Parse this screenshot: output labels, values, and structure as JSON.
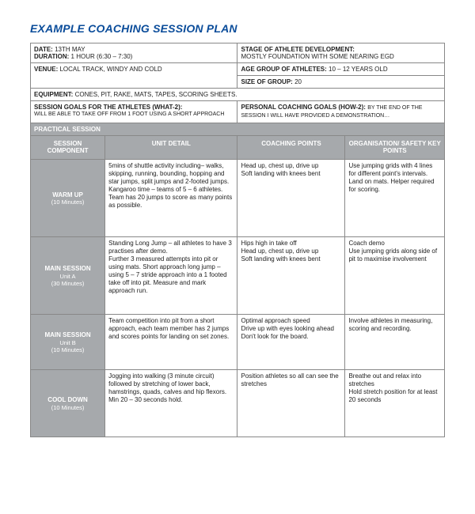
{
  "title": "EXAMPLE COACHING SESSION PLAN",
  "info": {
    "date_label": "DATE:",
    "date": "13TH MAY",
    "duration_label": "DURATION:",
    "duration": "1 HOUR (6:30 – 7:30)",
    "stage_label": "STAGE OF ATHLETE DEVELOPMENT:",
    "stage": "MOSTLY FOUNDATION WITH SOME NEARING EGD",
    "venue_label": "VENUE:",
    "venue": "LOCAL TRACK, WINDY AND COLD",
    "age_label": "AGE GROUP OF ATHLETES:",
    "age": "10 – 12 YEARS OLD",
    "size_label": "SIZE OF GROUP:",
    "size": "20",
    "equip_label": "EQUIPMENT:",
    "equip": "CONES, PIT, RAKE, MATS, TAPES, SCORING SHEETS.",
    "goals_a_label": "SESSION GOALS FOR THE ATHLETES (WHAT-2):",
    "goals_a": "WILL BE ABLE TO TAKE OFF FROM 1 FOOT USING A SHORT APPROACH",
    "goals_p_label": "PERSONAL COACHING GOALS (HOW-2):",
    "goals_p": "BY THE END OF THE SESSION I WILL HAVE PROVIDED A DEMONSTRATION…"
  },
  "practical_label": "PRACTICAL SESSION",
  "headers": {
    "c1": "SESSION COMPONENT",
    "c2": "UNIT DETAIL",
    "c3": "COACHING POINTS",
    "c4": "ORGANISATION/ SAFETY KEY POINTS"
  },
  "rows": [
    {
      "name": "WARM UP",
      "dur": "(10 Minutes)",
      "detail": "5mins of shuttle activity including– walks, skipping,  running, bounding, hopping and star jumps, split jumps and 2-footed jumps.\nKangaroo time – teams of 5 – 6 athletes. Team has 20 jumps to score as many points as possible.",
      "coach": "Head up, chest up, drive up\nSoft landing with knees bent",
      "org": "Use jumping grids with 4 lines for different point's intervals. Land on mats. Helper required for scoring."
    },
    {
      "name": "MAIN SESSION",
      "sub": "Unit A",
      "dur": "(30 Minutes)",
      "detail": "Standing Long Jump – all athletes to have 3 practises after demo.\nFurther 3 measured attempts into pit or using mats. Short approach long jump – using 5 – 7 stride approach into a 1 footed take off into pit. Measure and mark approach run.",
      "coach": "Hips high in take off\nHead up, chest up, drive up\nSoft landing with knees bent",
      "org": "Coach demo\nUse jumping grids along side of pit to maximise involvement"
    },
    {
      "name": "MAIN SESSION",
      "sub": "Unit B",
      "dur": "(10 Minutes)",
      "detail": "Team competition into pit from a short approach, each team member has 2 jumps and scores points  for landing on set zones.",
      "coach": "Optimal approach speed\nDrive up with eyes looking ahead\nDon't look for the board.",
      "org": "Involve athletes in measuring, scoring and recording."
    },
    {
      "name": "COOL DOWN",
      "dur": "(10 Minutes)",
      "detail": "Jogging into walking (3 minute circuit) followed by stretching of lower back, hamstrings, quads, calves  and hip flexors. Min 20 – 30 seconds hold.",
      "coach": "Position athletes so all can see the stretches",
      "org": "Breathe out and relax into stretches\nHold stretch position for at least 20 seconds"
    }
  ],
  "col_widths": [
    "18%",
    "32%",
    "26%",
    "24%"
  ],
  "row_heights": [
    "98px",
    "98px",
    "70px",
    "85px"
  ]
}
